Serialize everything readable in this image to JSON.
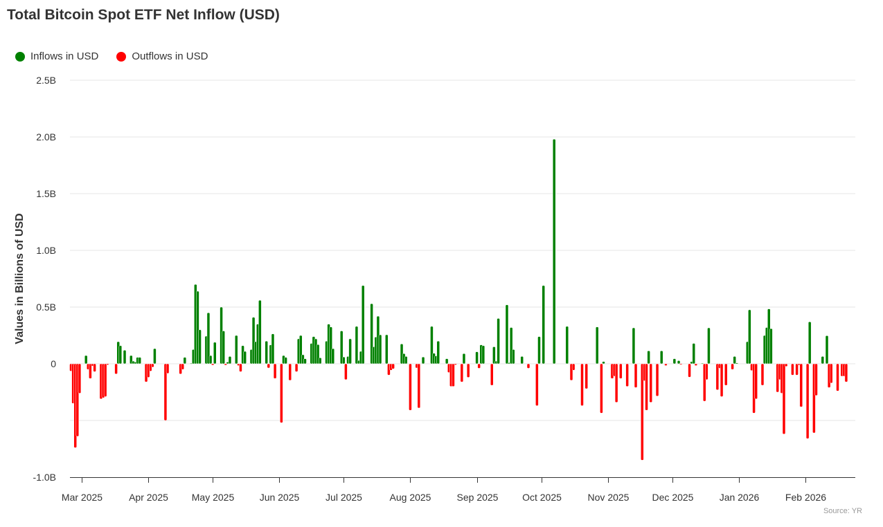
{
  "chart_data": {
    "type": "bar",
    "title": "Total Bitcoin Spot ETF Net Inflow (USD)",
    "ylabel": "Values in Billions of USD",
    "xlabel": "",
    "source": "Source: YR",
    "ylim": [
      -1.0,
      2.5
    ],
    "yticks": [
      2.5,
      2.0,
      1.5,
      1.0,
      0.5,
      0,
      -0.5,
      -1.0
    ],
    "ytick_labels": [
      "2.5B",
      "2.0B",
      "1.5B",
      "1.0B",
      "0.5B",
      "0",
      "",
      "-1.0B"
    ],
    "xticks": [
      "2025-03-01",
      "2025-04-01",
      "2025-05-01",
      "2025-06-01",
      "2025-07-01",
      "2025-08-01",
      "2025-09-01",
      "2025-10-01",
      "2025-11-01",
      "2025-12-01",
      "2026-01-01",
      "2026-02-01"
    ],
    "xtick_labels": [
      "Mar 2025",
      "Apr 2025",
      "May 2025",
      "Jun 2025",
      "Jul 2025",
      "Aug 2025",
      "Sep 2025",
      "Oct 2025",
      "Nov 2025",
      "Dec 2025",
      "Jan 2026",
      "Feb 2026"
    ],
    "grid": true,
    "legend_placement": "top-left",
    "legend": [
      {
        "name": "Inflows in USD",
        "color": "#008000"
      },
      {
        "name": "Outflows in USD",
        "color": "#ff0000"
      }
    ],
    "bars": [
      [
        "2025-02-24",
        -0.065
      ],
      [
        "2025-02-25",
        -0.35
      ],
      [
        "2025-02-26",
        -0.74
      ],
      [
        "2025-02-27",
        -0.64
      ],
      [
        "2025-02-28",
        -0.26
      ],
      [
        "2025-03-03",
        0.073
      ],
      [
        "2025-03-04",
        -0.05
      ],
      [
        "2025-03-05",
        -0.13
      ],
      [
        "2025-03-06",
        -0.02
      ],
      [
        "2025-03-07",
        -0.07
      ],
      [
        "2025-03-10",
        -0.31
      ],
      [
        "2025-03-11",
        -0.3
      ],
      [
        "2025-03-12",
        -0.29
      ],
      [
        "2025-03-13",
        -0.01
      ],
      [
        "2025-03-17",
        -0.09
      ],
      [
        "2025-03-18",
        0.195
      ],
      [
        "2025-03-19",
        0.16
      ],
      [
        "2025-03-21",
        0.12
      ],
      [
        "2025-03-24",
        0.073
      ],
      [
        "2025-03-25",
        0.024
      ],
      [
        "2025-03-26",
        0.016
      ],
      [
        "2025-03-27",
        0.057
      ],
      [
        "2025-03-28",
        0.057
      ],
      [
        "2025-03-31",
        -0.16
      ],
      [
        "2025-04-01",
        -0.12
      ],
      [
        "2025-04-02",
        -0.065
      ],
      [
        "2025-04-03",
        -0.03
      ],
      [
        "2025-04-04",
        0.134
      ],
      [
        "2025-04-09",
        -0.5
      ],
      [
        "2025-04-10",
        -0.085
      ],
      [
        "2025-04-16",
        -0.09
      ],
      [
        "2025-04-17",
        -0.05
      ],
      [
        "2025-04-18",
        0.057
      ],
      [
        "2025-04-21",
        0.004
      ],
      [
        "2025-04-22",
        0.126
      ],
      [
        "2025-04-23",
        0.7
      ],
      [
        "2025-04-24",
        0.64
      ],
      [
        "2025-04-25",
        0.3
      ],
      [
        "2025-04-28",
        0.244
      ],
      [
        "2025-04-29",
        0.45
      ],
      [
        "2025-04-30",
        0.073
      ],
      [
        "2025-05-01",
        -0.012
      ],
      [
        "2025-05-02",
        0.19
      ],
      [
        "2025-05-05",
        0.5
      ],
      [
        "2025-05-06",
        0.29
      ],
      [
        "2025-05-07",
        -0.012
      ],
      [
        "2025-05-08",
        0.016
      ],
      [
        "2025-05-09",
        0.065
      ],
      [
        "2025-05-12",
        0.25
      ],
      [
        "2025-05-13",
        -0.016
      ],
      [
        "2025-05-14",
        -0.07
      ],
      [
        "2025-05-15",
        0.16
      ],
      [
        "2025-05-16",
        0.11
      ],
      [
        "2025-05-19",
        0.126
      ],
      [
        "2025-05-20",
        0.41
      ],
      [
        "2025-05-21",
        0.195
      ],
      [
        "2025-05-22",
        0.35
      ],
      [
        "2025-05-23",
        0.56
      ],
      [
        "2025-05-26",
        0.2
      ],
      [
        "2025-05-27",
        -0.037
      ],
      [
        "2025-05-28",
        0.167
      ],
      [
        "2025-05-29",
        0.264
      ],
      [
        "2025-05-30",
        -0.13
      ],
      [
        "2025-06-02",
        -0.52
      ],
      [
        "2025-06-03",
        0.073
      ],
      [
        "2025-06-04",
        0.057
      ],
      [
        "2025-06-06",
        -0.146
      ],
      [
        "2025-06-09",
        -0.07
      ],
      [
        "2025-06-10",
        0.22
      ],
      [
        "2025-06-11",
        0.25
      ],
      [
        "2025-06-12",
        0.08
      ],
      [
        "2025-06-13",
        0.045
      ],
      [
        "2025-06-16",
        0.18
      ],
      [
        "2025-06-17",
        0.24
      ],
      [
        "2025-06-18",
        0.22
      ],
      [
        "2025-06-19",
        0.17
      ],
      [
        "2025-06-20",
        0.053
      ],
      [
        "2025-06-23",
        0.2
      ],
      [
        "2025-06-24",
        0.35
      ],
      [
        "2025-06-25",
        0.325
      ],
      [
        "2025-06-26",
        0.134
      ],
      [
        "2025-06-30",
        0.29
      ],
      [
        "2025-07-01",
        0.06
      ],
      [
        "2025-07-02",
        -0.14
      ],
      [
        "2025-07-03",
        0.065
      ],
      [
        "2025-07-04",
        0.22
      ],
      [
        "2025-07-07",
        0.33
      ],
      [
        "2025-07-08",
        0.03
      ],
      [
        "2025-07-09",
        0.11
      ],
      [
        "2025-07-10",
        0.69
      ],
      [
        "2025-07-14",
        0.53
      ],
      [
        "2025-07-15",
        0.15
      ],
      [
        "2025-07-16",
        0.236
      ],
      [
        "2025-07-17",
        0.42
      ],
      [
        "2025-07-18",
        0.256
      ],
      [
        "2025-07-21",
        0.256
      ],
      [
        "2025-07-22",
        -0.1
      ],
      [
        "2025-07-23",
        -0.057
      ],
      [
        "2025-07-24",
        -0.045
      ],
      [
        "2025-07-28",
        0.175
      ],
      [
        "2025-07-29",
        0.09
      ],
      [
        "2025-07-30",
        0.065
      ],
      [
        "2025-08-01",
        -0.41
      ],
      [
        "2025-08-04",
        -0.037
      ],
      [
        "2025-08-05",
        -0.39
      ],
      [
        "2025-08-07",
        0.06
      ],
      [
        "2025-08-11",
        0.33
      ],
      [
        "2025-08-12",
        0.093
      ],
      [
        "2025-08-13",
        0.07
      ],
      [
        "2025-08-14",
        0.2
      ],
      [
        "2025-08-18",
        0.045
      ],
      [
        "2025-08-19",
        -0.077
      ],
      [
        "2025-08-20",
        -0.2
      ],
      [
        "2025-08-21",
        -0.2
      ],
      [
        "2025-08-22",
        -0.01
      ],
      [
        "2025-08-25",
        -0.16
      ],
      [
        "2025-08-26",
        0.09
      ],
      [
        "2025-08-28",
        -0.12
      ],
      [
        "2025-09-01",
        0.106
      ],
      [
        "2025-09-02",
        -0.04
      ],
      [
        "2025-09-03",
        0.167
      ],
      [
        "2025-09-04",
        0.16
      ],
      [
        "2025-09-08",
        -0.19
      ],
      [
        "2025-09-09",
        0.15
      ],
      [
        "2025-09-10",
        0.024
      ],
      [
        "2025-09-11",
        0.4
      ],
      [
        "2025-09-15",
        0.52
      ],
      [
        "2025-09-16",
        0.01
      ],
      [
        "2025-09-17",
        0.32
      ],
      [
        "2025-09-18",
        0.126
      ],
      [
        "2025-09-22",
        0.065
      ],
      [
        "2025-09-25",
        -0.04
      ],
      [
        "2025-09-29",
        -0.37
      ],
      [
        "2025-09-30",
        0.24
      ],
      [
        "2025-10-02",
        0.69
      ],
      [
        "2025-10-07",
        1.98
      ],
      [
        "2025-10-13",
        0.33
      ],
      [
        "2025-10-15",
        -0.146
      ],
      [
        "2025-10-16",
        -0.057
      ],
      [
        "2025-10-20",
        -0.37
      ],
      [
        "2025-10-22",
        -0.22
      ],
      [
        "2025-10-27",
        0.325
      ],
      [
        "2025-10-29",
        -0.435
      ],
      [
        "2025-10-30",
        0.02
      ],
      [
        "2025-11-03",
        -0.13
      ],
      [
        "2025-11-04",
        -0.11
      ],
      [
        "2025-11-05",
        -0.34
      ],
      [
        "2025-11-07",
        -0.13
      ],
      [
        "2025-11-10",
        -0.2
      ],
      [
        "2025-11-13",
        0.317
      ],
      [
        "2025-11-14",
        -0.21
      ],
      [
        "2025-11-17",
        -0.85
      ],
      [
        "2025-11-18",
        -0.15
      ],
      [
        "2025-11-19",
        -0.41
      ],
      [
        "2025-11-20",
        0.114
      ],
      [
        "2025-11-21",
        -0.34
      ],
      [
        "2025-11-24",
        -0.285
      ],
      [
        "2025-11-26",
        0.114
      ],
      [
        "2025-11-28",
        -0.016
      ],
      [
        "2025-12-02",
        0.045
      ],
      [
        "2025-12-04",
        0.028
      ],
      [
        "2025-12-05",
        -0.008
      ],
      [
        "2025-12-09",
        -0.118
      ],
      [
        "2025-12-10",
        0.02
      ],
      [
        "2025-12-11",
        0.18
      ],
      [
        "2025-12-12",
        -0.016
      ],
      [
        "2025-12-15",
        0.004
      ],
      [
        "2025-12-16",
        -0.33
      ],
      [
        "2025-12-17",
        -0.14
      ],
      [
        "2025-12-18",
        0.317
      ],
      [
        "2025-12-22",
        -0.23
      ],
      [
        "2025-12-23",
        -0.04
      ],
      [
        "2025-12-24",
        -0.29
      ],
      [
        "2025-12-26",
        -0.19
      ],
      [
        "2025-12-29",
        -0.05
      ],
      [
        "2025-12-30",
        0.065
      ],
      [
        "2025-12-31",
        0.008
      ],
      [
        "2026-01-05",
        0.195
      ],
      [
        "2026-01-06",
        0.476
      ],
      [
        "2026-01-07",
        -0.06
      ],
      [
        "2026-01-08",
        -0.435
      ],
      [
        "2026-01-09",
        -0.31
      ],
      [
        "2026-01-12",
        -0.19
      ],
      [
        "2026-01-13",
        0.25
      ],
      [
        "2026-01-14",
        0.32
      ],
      [
        "2026-01-15",
        0.484
      ],
      [
        "2026-01-16",
        0.31
      ],
      [
        "2026-01-19",
        -0.25
      ],
      [
        "2026-01-20",
        -0.14
      ],
      [
        "2026-01-21",
        -0.26
      ],
      [
        "2026-01-22",
        -0.62
      ],
      [
        "2026-01-23",
        -0.024
      ],
      [
        "2026-01-26",
        -0.1
      ],
      [
        "2026-01-28",
        -0.1
      ],
      [
        "2026-01-29",
        -0.012
      ],
      [
        "2026-01-30",
        -0.38
      ],
      [
        "2026-02-02",
        -0.66
      ],
      [
        "2026-02-03",
        0.37
      ],
      [
        "2026-02-05",
        -0.61
      ],
      [
        "2026-02-06",
        -0.28
      ],
      [
        "2026-02-09",
        0.065
      ],
      [
        "2026-02-11",
        0.248
      ],
      [
        "2026-02-12",
        -0.21
      ],
      [
        "2026-02-13",
        -0.17
      ],
      [
        "2026-02-16",
        -0.24
      ],
      [
        "2026-02-18",
        -0.11
      ],
      [
        "2026-02-19",
        -0.11
      ],
      [
        "2026-02-20",
        -0.16
      ]
    ]
  }
}
